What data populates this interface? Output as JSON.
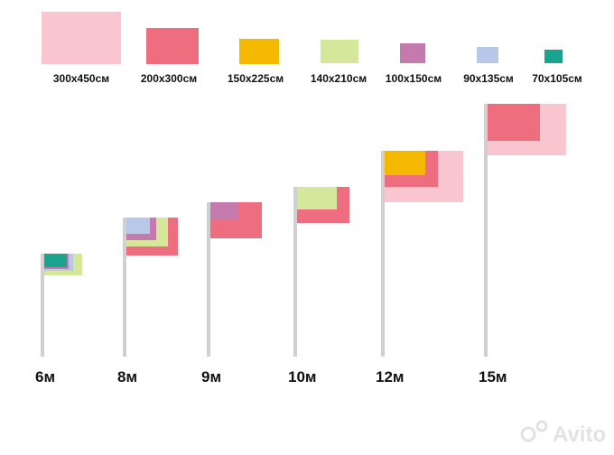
{
  "legend": [
    {
      "label": "300x450см",
      "color": "#f9c6d0"
    },
    {
      "label": "200x300см",
      "color": "#ee6e7f"
    },
    {
      "label": "150x225см",
      "color": "#f5b800"
    },
    {
      "label": "140x210см",
      "color": "#d4e79a"
    },
    {
      "label": "100x150см",
      "color": "#c47aad"
    },
    {
      "label": "90x135см",
      "color": "#b8c8e8"
    },
    {
      "label": "70x105см",
      "color": "#1aa48f"
    }
  ],
  "poles": [
    {
      "label": "6м"
    },
    {
      "label": "8м"
    },
    {
      "label": "9м"
    },
    {
      "label": "10м"
    },
    {
      "label": "12м"
    },
    {
      "label": "15м"
    }
  ],
  "watermark": "Avito"
}
